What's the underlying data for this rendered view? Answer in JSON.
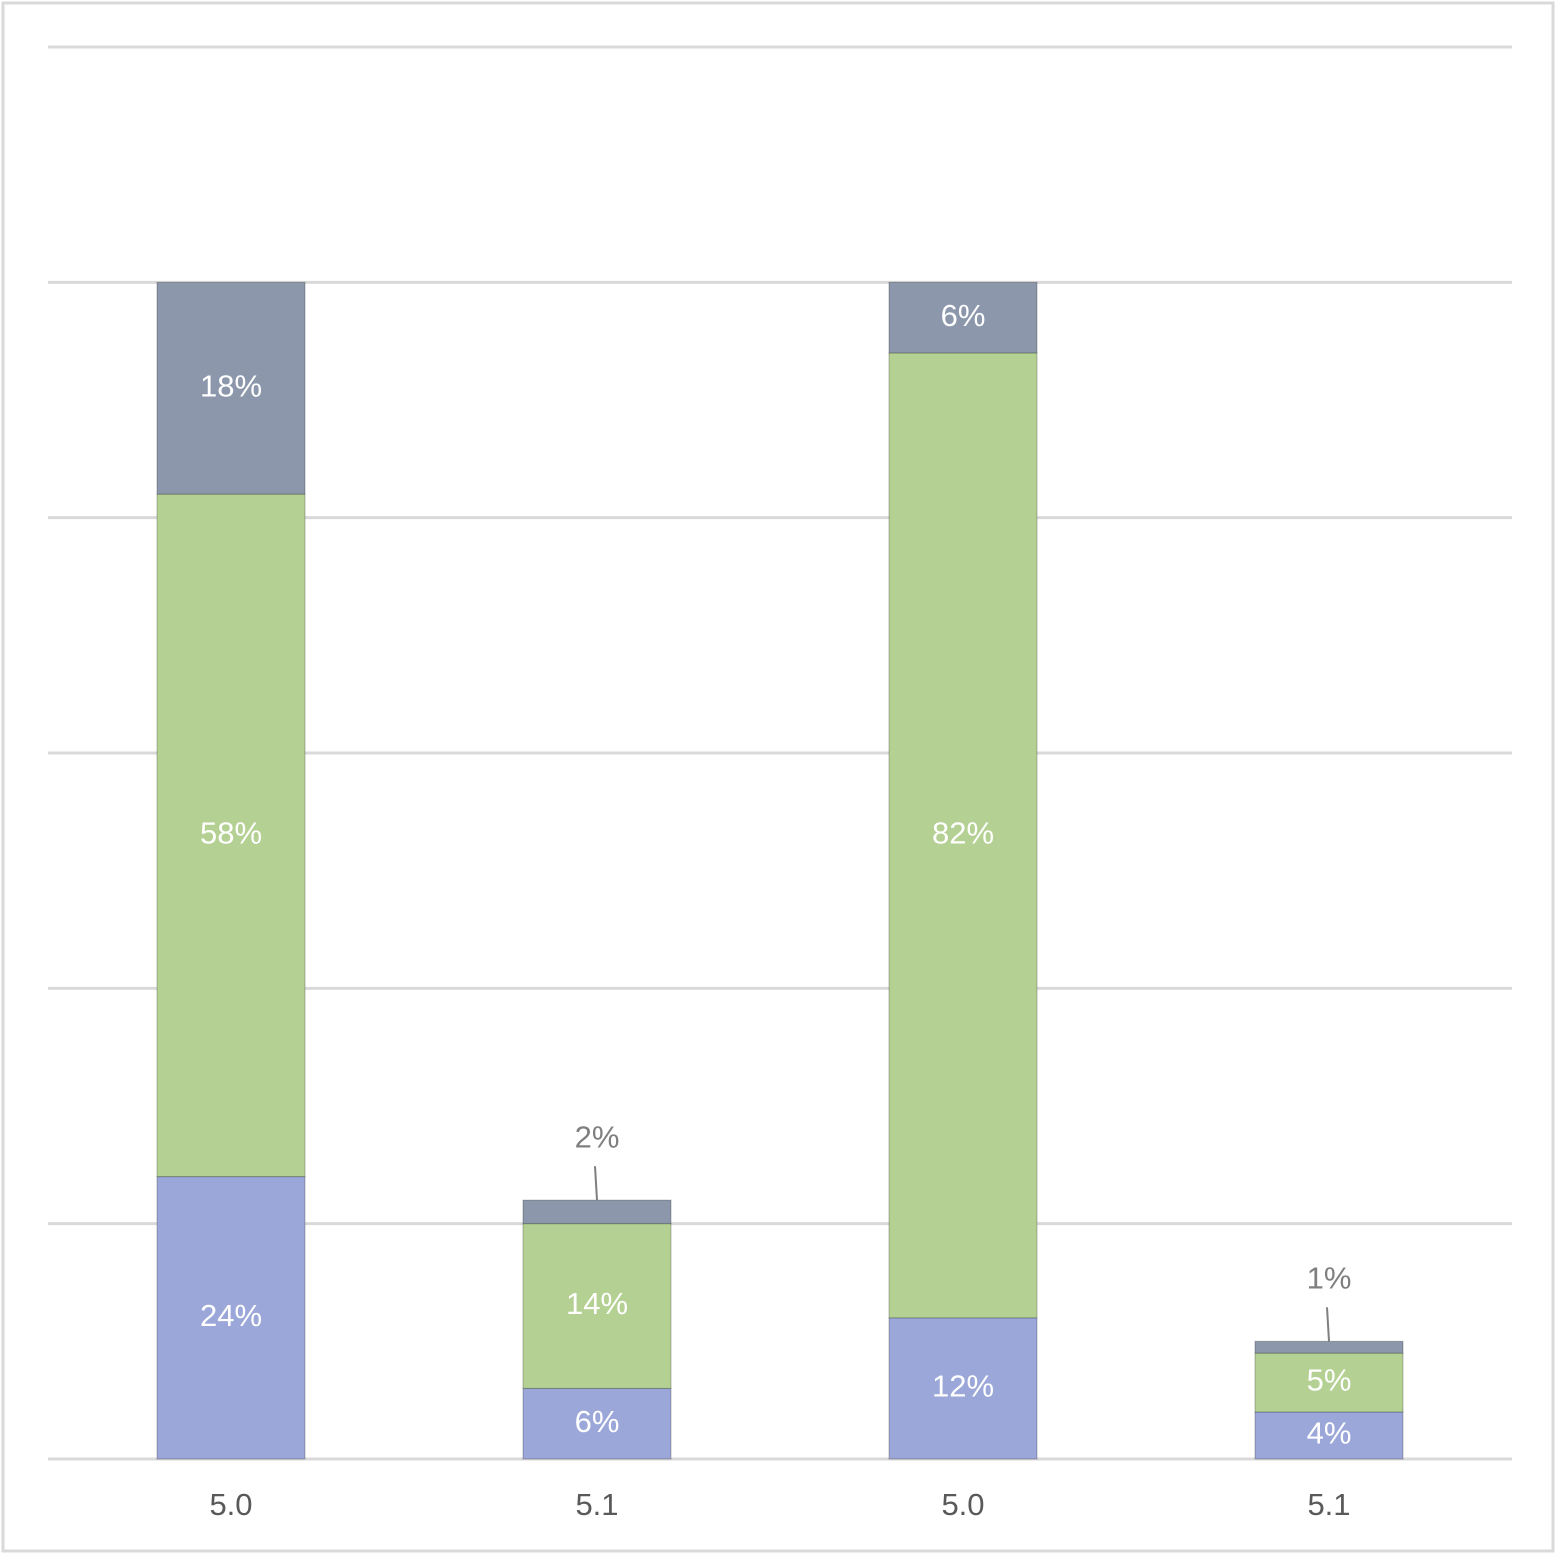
{
  "chart_data": {
    "type": "stacked_bar",
    "categories": [
      "5.0",
      "5.1",
      "5.0",
      "5.1"
    ],
    "series": [
      {
        "color": "#9ba7d8",
        "values": [
          24,
          6,
          12,
          4
        ],
        "value_labels": [
          "24%",
          "6%",
          "12%",
          "4%"
        ]
      },
      {
        "color": "#b4d193",
        "values": [
          58,
          14,
          82,
          5
        ],
        "value_labels": [
          "58%",
          "14%",
          "82%",
          "5%"
        ]
      },
      {
        "color": "#8c97ac",
        "values": [
          18,
          2,
          6,
          1
        ],
        "value_labels": [
          "18%",
          "2%",
          "6%",
          "1%"
        ]
      }
    ],
    "ylim": [
      0,
      120
    ],
    "yticks": [
      0,
      20,
      40,
      60,
      80,
      100,
      120
    ],
    "grid": true
  }
}
